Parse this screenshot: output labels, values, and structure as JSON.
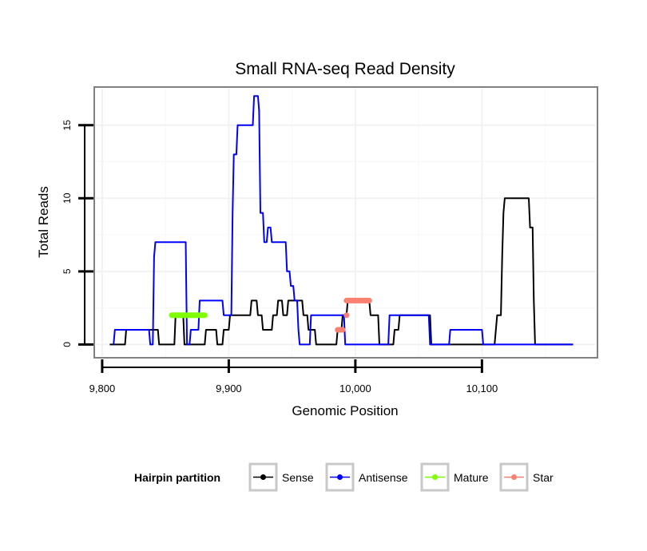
{
  "chart_data": {
    "type": "line",
    "title": "Small RNA-seq Read Density",
    "xlabel": "Genomic Position",
    "ylabel": "Total Reads",
    "xlim": [
      9795,
      10190
    ],
    "ylim": [
      -0.8,
      17.5
    ],
    "x_ticks": [
      9800,
      9900,
      10000,
      10100
    ],
    "x_tick_labels": [
      "9,800",
      "9,900",
      "10,000",
      "10,100"
    ],
    "y_ticks": [
      0,
      5,
      10,
      15
    ],
    "y_tick_labels": [
      "0",
      "5",
      "10",
      "15"
    ],
    "grid": true,
    "legend": {
      "title": "Hairpin partition",
      "position": "bottom",
      "entries": [
        {
          "label": "Sense",
          "color": "#000000"
        },
        {
          "label": "Antisense",
          "color": "#0000ff"
        },
        {
          "label": "Mature",
          "color": "#7fff00"
        },
        {
          "label": "Star",
          "color": "#fa8072"
        }
      ]
    },
    "series": [
      {
        "name": "Sense",
        "color": "#000000",
        "style": "step",
        "points": [
          [
            9806,
            0
          ],
          [
            9818,
            0
          ],
          [
            9819,
            1
          ],
          [
            9844,
            1
          ],
          [
            9845,
            0
          ],
          [
            9857,
            0
          ],
          [
            9858,
            2
          ],
          [
            9864,
            2
          ],
          [
            9865,
            0
          ],
          [
            9881,
            0
          ],
          [
            9882,
            1
          ],
          [
            9890,
            1
          ],
          [
            9891,
            0
          ],
          [
            9895,
            0
          ],
          [
            9896,
            1
          ],
          [
            9900,
            1
          ],
          [
            9901,
            2
          ],
          [
            9917,
            2
          ],
          [
            9918,
            3
          ],
          [
            9922,
            3
          ],
          [
            9923,
            2
          ],
          [
            9926,
            2
          ],
          [
            9927,
            1
          ],
          [
            9934,
            1
          ],
          [
            9935,
            2
          ],
          [
            9938,
            2
          ],
          [
            9939,
            3
          ],
          [
            9942,
            3
          ],
          [
            9943,
            2
          ],
          [
            9946,
            2
          ],
          [
            9947,
            3
          ],
          [
            9958,
            3
          ],
          [
            9959,
            2
          ],
          [
            9962,
            2
          ],
          [
            9963,
            1
          ],
          [
            9968,
            1
          ],
          [
            9969,
            0
          ],
          [
            9985,
            0
          ],
          [
            9986,
            1
          ],
          [
            9989,
            1
          ],
          [
            9990,
            2
          ],
          [
            9993,
            2
          ],
          [
            9994,
            3
          ],
          [
            10011,
            3
          ],
          [
            10012,
            2
          ],
          [
            10018,
            2
          ],
          [
            10019,
            0
          ],
          [
            10030,
            0
          ],
          [
            10031,
            1
          ],
          [
            10034,
            1
          ],
          [
            10035,
            2
          ],
          [
            10059,
            2
          ],
          [
            10060,
            0
          ],
          [
            10110,
            0
          ],
          [
            10111,
            1
          ],
          [
            10112,
            2
          ],
          [
            10115,
            2
          ],
          [
            10116,
            6
          ],
          [
            10117,
            9
          ],
          [
            10118,
            10
          ],
          [
            10137,
            10
          ],
          [
            10138,
            8
          ],
          [
            10140,
            8
          ],
          [
            10141,
            3
          ],
          [
            10142,
            0
          ],
          [
            10172,
            0
          ]
        ]
      },
      {
        "name": "Antisense",
        "color": "#0000ff",
        "style": "step",
        "points": [
          [
            9809,
            0
          ],
          [
            9810,
            1
          ],
          [
            9837,
            1
          ],
          [
            9838,
            0
          ],
          [
            9840,
            0
          ],
          [
            9841,
            6
          ],
          [
            9842,
            7
          ],
          [
            9866,
            7
          ],
          [
            9867,
            0
          ],
          [
            9869,
            0
          ],
          [
            9870,
            1
          ],
          [
            9876,
            1
          ],
          [
            9877,
            3
          ],
          [
            9895,
            3
          ],
          [
            9896,
            2
          ],
          [
            9902,
            2
          ],
          [
            9903,
            9
          ],
          [
            9904,
            13
          ],
          [
            9906,
            13
          ],
          [
            9907,
            15
          ],
          [
            9919,
            15
          ],
          [
            9920,
            17
          ],
          [
            9923,
            17
          ],
          [
            9924,
            16
          ],
          [
            9925,
            9
          ],
          [
            9927,
            9
          ],
          [
            9928,
            7
          ],
          [
            9930,
            7
          ],
          [
            9931,
            8
          ],
          [
            9933,
            8
          ],
          [
            9934,
            7
          ],
          [
            9945,
            7
          ],
          [
            9946,
            5
          ],
          [
            9948,
            5
          ],
          [
            9949,
            4
          ],
          [
            9951,
            4
          ],
          [
            9952,
            3
          ],
          [
            9954,
            3
          ],
          [
            9955,
            1
          ],
          [
            9956,
            0
          ],
          [
            9964,
            0
          ],
          [
            9965,
            2
          ],
          [
            9991,
            2
          ],
          [
            9992,
            0
          ],
          [
            10026,
            0
          ],
          [
            10027,
            2
          ],
          [
            10058,
            2
          ],
          [
            10059,
            0
          ],
          [
            10074,
            0
          ],
          [
            10075,
            1
          ],
          [
            10100,
            1
          ],
          [
            10101,
            0
          ],
          [
            10172,
            0
          ]
        ]
      },
      {
        "name": "Mature",
        "color": "#7fff00",
        "style": "thick",
        "segments": [
          {
            "x": [
              9855,
              9881
            ],
            "y": 2
          }
        ]
      },
      {
        "name": "Star",
        "color": "#fa8072",
        "style": "thick",
        "segments": [
          {
            "x": [
              9986,
              9990
            ],
            "y": 1
          },
          {
            "x": [
              9993,
              9993
            ],
            "y": 2
          },
          {
            "x": [
              9993,
              10011
            ],
            "y": 3
          }
        ]
      }
    ]
  }
}
